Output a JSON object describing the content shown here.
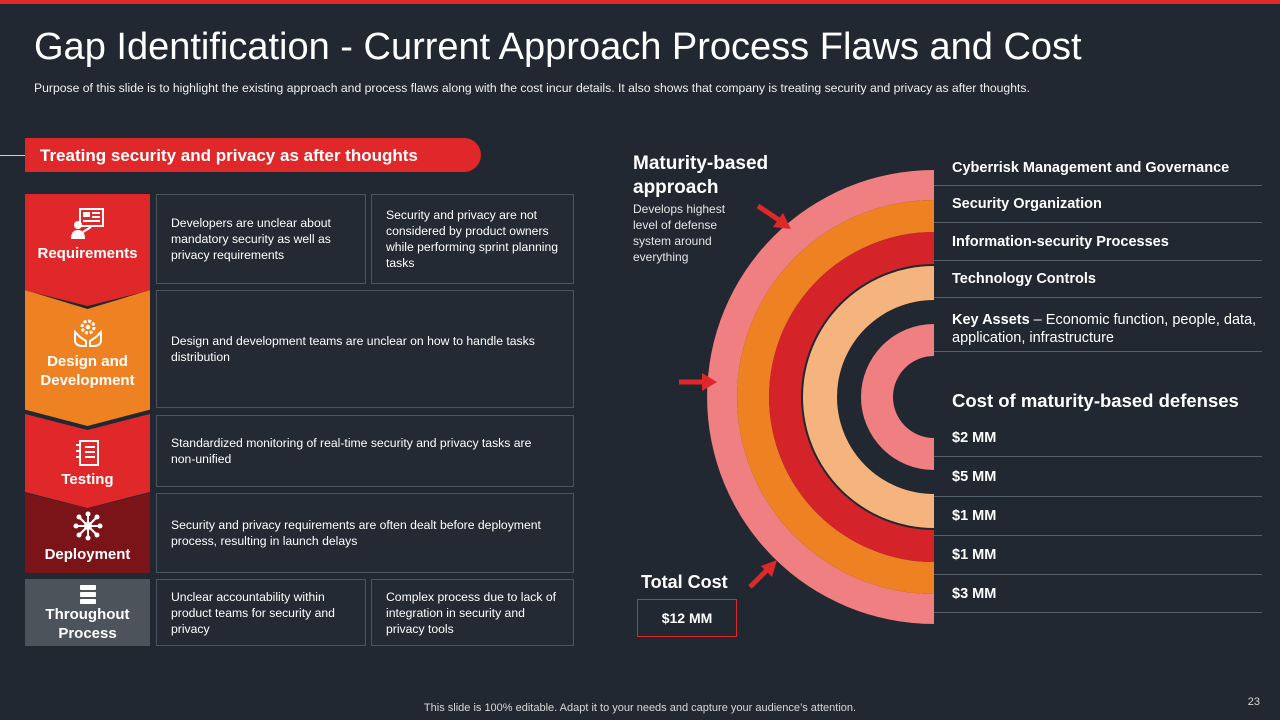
{
  "title": "Gap Identification - Current Approach Process Flaws and Cost",
  "subtitle": "Purpose of this slide is to highlight the existing approach and process flaws along with the cost incur details. It also shows that company is treating security and privacy as after thoughts.",
  "section": {
    "heading": "Treating security and privacy as after thoughts"
  },
  "stages": [
    {
      "label": "Requirements",
      "icon": "requirements-icon",
      "color": "#e0282a"
    },
    {
      "label": "Design and Development",
      "icon": "gear-hand-icon",
      "color": "#ee8223"
    },
    {
      "label": "Testing",
      "icon": "checklist-icon",
      "color": "#e0282a"
    },
    {
      "label": "Deployment",
      "icon": "network-icon",
      "color": "#7a1418"
    },
    {
      "label": "Throughout Process",
      "icon": "server-icon",
      "color": "#4c535a"
    }
  ],
  "flaws": {
    "req_1": "Developers are unclear about mandatory security as well as privacy requirements",
    "req_2": "Security and privacy are not considered by product owners while performing sprint planning tasks",
    "design": "Design and development teams are unclear on how to handle tasks distribution",
    "testing": "Standardized monitoring of real-time security and privacy tasks are non-unified",
    "deploy": "Security and privacy requirements are often dealt before deployment process, resulting in launch delays",
    "through_1": "Unclear accountability within product teams for security and privacy",
    "through_2": "Complex process due to lack of integration in security and privacy tools"
  },
  "maturity": {
    "title_line1": "Maturity-based",
    "title_line2": "approach",
    "description": "Develops highest level of defense system around everything"
  },
  "layers": [
    {
      "name": "Cyberrisk Management and Governance",
      "color": "#ef7f80"
    },
    {
      "name": "Security Organization",
      "color": "#ee8223"
    },
    {
      "name": "Information-security Processes",
      "color": "#d4242a"
    },
    {
      "name": "Technology Controls",
      "color": "#f5b47d"
    },
    {
      "name": "Key Assets",
      "detail": "Economic function, people, data, application, infrastructure",
      "color": "#ef7f80"
    }
  ],
  "key_assets_sep": " – ",
  "cost": {
    "heading": "Cost of maturity-based defenses",
    "values": [
      "$2 MM",
      "$5 MM",
      "$1 MM",
      "$1 MM",
      "$3 MM"
    ]
  },
  "total": {
    "label": "Total Cost",
    "value": "$12 MM"
  },
  "footer": "This slide is 100% editable. Adapt it to your needs and capture your audience’s attention.",
  "page_number": "23"
}
